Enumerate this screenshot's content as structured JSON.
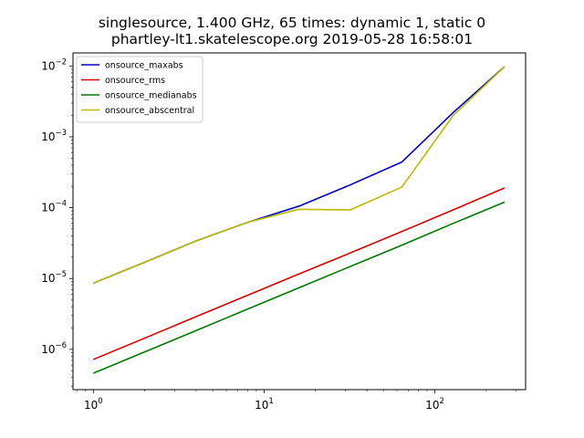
{
  "title_line1": "singlesource, 1.400 GHz, 65 times: dynamic 1, static 0",
  "title_line2": "phartley-lt1.skatelescope.org 2019-05-28 16:58:01",
  "chart_data": {
    "type": "line",
    "xscale": "log",
    "yscale": "log",
    "title": "singlesource, 1.400 GHz, 65 times: dynamic 1, static 0\nphartley-lt1.skatelescope.org 2019-05-28 16:58:01",
    "xlabel": "",
    "ylabel": "",
    "xlim": [
      0.76,
      340
    ],
    "ylim": [
      2.7e-07,
      0.0153
    ],
    "x_ticks": [
      {
        "value": 1,
        "base": "10",
        "exp": "0"
      },
      {
        "value": 10,
        "base": "10",
        "exp": "1"
      },
      {
        "value": 100,
        "base": "10",
        "exp": "2"
      }
    ],
    "y_ticks": [
      {
        "value": 1e-06,
        "base": "10",
        "exp": "−6"
      },
      {
        "value": 1e-05,
        "base": "10",
        "exp": "−5"
      },
      {
        "value": 0.0001,
        "base": "10",
        "exp": "−4"
      },
      {
        "value": 0.001,
        "base": "10",
        "exp": "−3"
      },
      {
        "value": 0.01,
        "base": "10",
        "exp": "−2"
      }
    ],
    "legend_position": "top-left",
    "x": [
      1,
      2,
      4,
      8,
      16,
      32,
      64,
      128,
      256
    ],
    "series": [
      {
        "name": "onsource_maxabs",
        "color": "#0000cc",
        "values": [
          8.6e-06,
          1.7e-05,
          3.4e-05,
          6.2e-05,
          0.000105,
          0.00021,
          0.00044,
          0.0022,
          0.0098
        ]
      },
      {
        "name": "onsource_rms",
        "color": "#dd0000",
        "values": [
          7.2e-07,
          1.44e-06,
          2.9e-06,
          5.8e-06,
          1.16e-05,
          2.3e-05,
          4.6e-05,
          9.3e-05,
          0.00019
        ]
      },
      {
        "name": "onsource_medianabs",
        "color": "#007700",
        "values": [
          4.6e-07,
          9.2e-07,
          1.84e-06,
          3.7e-06,
          7.4e-06,
          1.48e-05,
          2.95e-05,
          6e-05,
          0.00012
        ]
      },
      {
        "name": "onsource_abscentral",
        "color": "#bbbb00",
        "values": [
          8.6e-06,
          1.7e-05,
          3.4e-05,
          6.2e-05,
          9.5e-05,
          9.3e-05,
          0.000195,
          0.002,
          0.0098
        ]
      }
    ]
  }
}
